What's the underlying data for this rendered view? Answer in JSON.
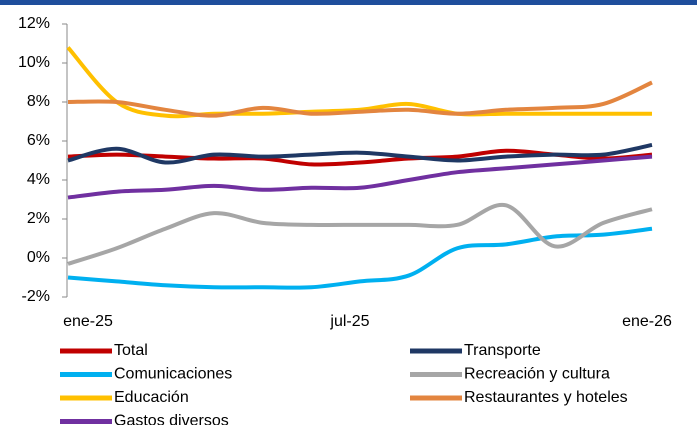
{
  "chart_data": {
    "type": "line",
    "categories": [
      "ene-25",
      null,
      null,
      null,
      null,
      null,
      "jul-25",
      null,
      null,
      null,
      null,
      null,
      "ene-26"
    ],
    "series": [
      {
        "name": "Total",
        "color": "#c00000",
        "values": [
          5.2,
          5.3,
          5.2,
          5.1,
          5.1,
          4.8,
          4.9,
          5.1,
          5.2,
          5.5,
          5.3,
          5.1,
          5.3
        ]
      },
      {
        "name": "Transporte",
        "color": "#1f3864",
        "values": [
          5.0,
          5.6,
          4.9,
          5.3,
          5.2,
          5.3,
          5.4,
          5.2,
          5.0,
          5.2,
          5.3,
          5.3,
          5.8
        ]
      },
      {
        "name": "Comunicaciones",
        "color": "#00b0f0",
        "values": [
          -1.0,
          -1.2,
          -1.4,
          -1.5,
          -1.5,
          -1.5,
          -1.2,
          -0.9,
          0.5,
          0.7,
          1.1,
          1.2,
          1.5
        ]
      },
      {
        "name": "Recreación y cultura",
        "color": "#a6a6a6",
        "values": [
          -0.3,
          0.5,
          1.5,
          2.3,
          1.8,
          1.7,
          1.7,
          1.7,
          1.7,
          2.7,
          0.6,
          1.8,
          2.5
        ]
      },
      {
        "name": "Educación",
        "color": "#ffc000",
        "values": [
          10.8,
          8.0,
          7.3,
          7.4,
          7.4,
          7.5,
          7.6,
          7.9,
          7.4,
          7.4,
          7.4,
          7.4,
          7.4
        ]
      },
      {
        "name": "Restaurantes y hoteles",
        "color": "#e3853f",
        "values": [
          8.0,
          8.0,
          7.6,
          7.3,
          7.7,
          7.4,
          7.5,
          7.6,
          7.4,
          7.6,
          7.7,
          7.9,
          9.0
        ]
      },
      {
        "name": "Gastos diversos",
        "color": "#7030a0",
        "values": [
          3.1,
          3.4,
          3.5,
          3.7,
          3.5,
          3.6,
          3.6,
          4.0,
          4.4,
          4.6,
          4.8,
          5.0,
          5.2
        ]
      }
    ],
    "ylim": [
      -2,
      12
    ],
    "yticks": [
      {
        "value": -2,
        "label": "-2%"
      },
      {
        "value": 0,
        "label": "0%"
      },
      {
        "value": 2,
        "label": "2%"
      },
      {
        "value": 4,
        "label": "4%"
      },
      {
        "value": 6,
        "label": "6%"
      },
      {
        "value": 8,
        "label": "8%"
      },
      {
        "value": 10,
        "label": "10%"
      },
      {
        "value": 12,
        "label": "12%"
      }
    ],
    "grid": false
  }
}
